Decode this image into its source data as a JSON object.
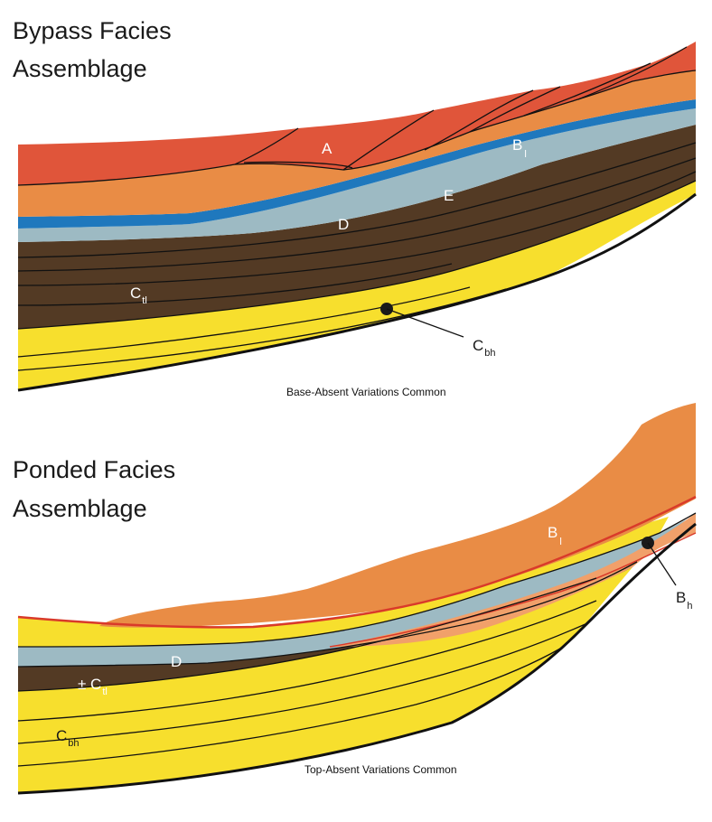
{
  "top": {
    "title_line1": "Bypass Facies",
    "title_line2": "Assemblage",
    "caption": "Base-Absent Variations Common",
    "labels": {
      "A": "A",
      "B": "B",
      "B_sub": "l",
      "E": "E",
      "D": "D",
      "C_tl": "C",
      "C_tl_sub": "tl",
      "C_bh": "C",
      "C_bh_sub": "bh"
    }
  },
  "bottom": {
    "title_line1": "Ponded Facies",
    "title_line2": "Assemblage",
    "caption": "Top-Absent Variations Common",
    "labels": {
      "B_l": "B",
      "B_l_sub": "l",
      "B_h": "B",
      "B_h_sub": "h",
      "D": "D",
      "C_tl": "± C",
      "C_tl_sub": "tl",
      "C_bh": "C",
      "C_bh_sub": "bh"
    }
  },
  "colors": {
    "red": "#E0553A",
    "orange": "#E98C45",
    "blue": "#1F78BD",
    "grey_blue": "#9DBAC3",
    "brown": "#533A24",
    "yellow": "#F7DF2D",
    "red_line": "#D93A2A",
    "light_orange": "#F1A06A",
    "outline": "#111111"
  }
}
